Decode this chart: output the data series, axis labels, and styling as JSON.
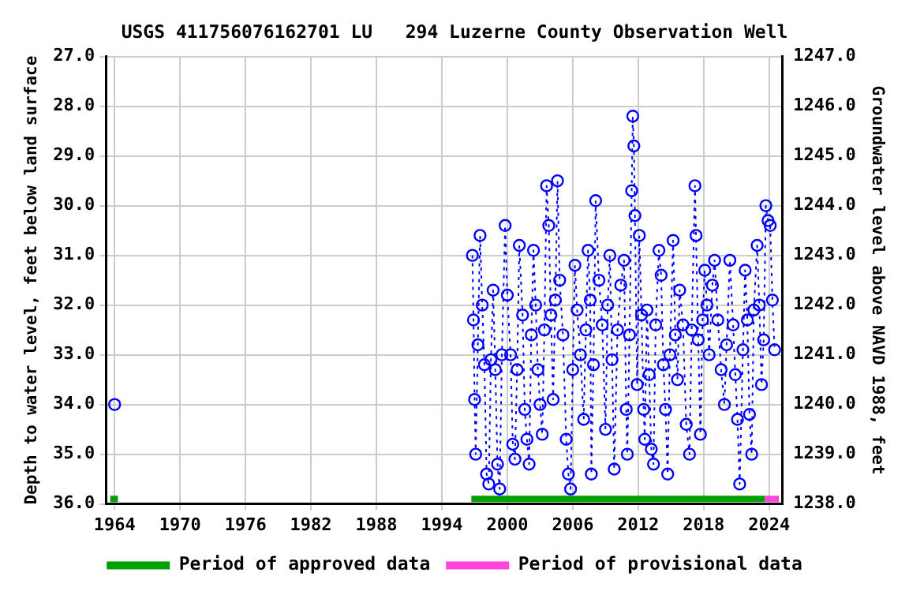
{
  "chart_data": {
    "type": "line",
    "title": "USGS 411756076162701 LU   294 Luzerne County Observation Well",
    "ylabel": "Depth to water level, feet below land surface",
    "y2label": "Groundwater level above NAVD 1988, feet",
    "x": [
      1964.0,
      1980,
      1996.8,
      1996.9,
      1997.0,
      1997.1,
      1997.3,
      1997.5,
      1997.7,
      1997.9,
      1998.1,
      1998.3,
      1998.5,
      1998.7,
      1998.9,
      1999.1,
      1999.3,
      1999.5,
      1999.8,
      2000.0,
      2000.3,
      2000.5,
      2000.7,
      2000.9,
      2001.1,
      2001.4,
      2001.6,
      2001.8,
      2002.0,
      2002.2,
      2002.4,
      2002.6,
      2002.8,
      2003.0,
      2003.2,
      2003.4,
      2003.6,
      2003.8,
      2004.0,
      2004.2,
      2004.4,
      2004.6,
      2004.8,
      2005.1,
      2005.4,
      2005.6,
      2005.8,
      2006.0,
      2006.2,
      2006.4,
      2006.7,
      2007.0,
      2007.2,
      2007.4,
      2007.6,
      2007.7,
      2007.9,
      2008.1,
      2008.4,
      2008.7,
      2009.0,
      2009.2,
      2009.4,
      2009.6,
      2009.8,
      2010.1,
      2010.4,
      2010.7,
      2010.9,
      2011.0,
      2011.2,
      2011.4,
      2011.5,
      2011.6,
      2011.7,
      2011.9,
      2012.1,
      2012.3,
      2012.5,
      2012.6,
      2012.8,
      2013.0,
      2013.2,
      2013.4,
      2013.6,
      2013.9,
      2014.1,
      2014.3,
      2014.5,
      2014.7,
      2014.9,
      2015.2,
      2015.4,
      2015.6,
      2015.8,
      2016.1,
      2016.4,
      2016.7,
      2016.9,
      2017.2,
      2017.3,
      2017.5,
      2017.7,
      2017.9,
      2018.1,
      2018.3,
      2018.5,
      2018.8,
      2019.0,
      2019.3,
      2019.6,
      2019.9,
      2020.1,
      2020.4,
      2020.7,
      2020.9,
      2021.1,
      2021.3,
      2021.6,
      2021.8,
      2022.0,
      2022.2,
      2022.4,
      2022.6,
      2022.9,
      2023.1,
      2023.3,
      2023.5,
      2023.7,
      2023.9,
      2024.1,
      2024.3,
      2024.5
    ],
    "series": [
      {
        "color": "#0000ff",
        "values": [
          34.0,
          null,
          31.0,
          32.3,
          33.9,
          35.0,
          32.8,
          30.6,
          32.0,
          33.2,
          35.4,
          35.6,
          33.1,
          31.7,
          33.3,
          35.2,
          35.7,
          33.0,
          30.4,
          31.8,
          33.0,
          34.8,
          35.1,
          33.3,
          30.8,
          32.2,
          34.1,
          34.7,
          35.2,
          32.6,
          30.9,
          32.0,
          33.3,
          34.0,
          34.6,
          32.5,
          29.6,
          30.4,
          32.2,
          33.9,
          31.9,
          29.5,
          31.5,
          32.6,
          34.7,
          35.4,
          35.7,
          33.3,
          31.2,
          32.1,
          33.0,
          34.3,
          32.5,
          30.9,
          31.9,
          35.4,
          33.2,
          29.9,
          31.5,
          32.4,
          34.5,
          32.0,
          31.0,
          33.1,
          35.3,
          32.5,
          31.6,
          31.1,
          34.1,
          35.0,
          32.6,
          29.7,
          28.2,
          28.8,
          30.2,
          33.6,
          30.6,
          32.2,
          34.1,
          34.7,
          32.1,
          33.4,
          34.9,
          35.2,
          32.4,
          30.9,
          31.4,
          33.2,
          34.1,
          35.4,
          33.0,
          30.7,
          32.6,
          33.5,
          31.7,
          32.4,
          34.4,
          35.0,
          32.5,
          29.6,
          30.6,
          32.7,
          34.6,
          32.3,
          31.3,
          32.0,
          33.0,
          31.6,
          31.1,
          32.3,
          33.3,
          34.0,
          32.8,
          31.1,
          32.4,
          33.4,
          34.3,
          35.6,
          32.9,
          31.3,
          32.3,
          34.2,
          35.0,
          32.1,
          30.8,
          32.0,
          33.6,
          32.7,
          30.0,
          30.3,
          30.4,
          31.9,
          32.9
        ]
      },
      {
        "name": "Period of approved data",
        "color": "#00a000",
        "marker": "none",
        "line_style": "solid",
        "x": [
          1963.6,
          1964.3,
          1980,
          1996.7,
          2023.6
        ],
        "values": [
          35.9,
          35.9,
          null,
          35.9,
          35.9
        ]
      },
      {
        "name": "Period of provisional data",
        "color": "#ff44dd",
        "marker": "none",
        "line_style": "solid",
        "x": [
          2023.6,
          2024.9
        ],
        "values": [
          35.9,
          35.9
        ]
      }
    ],
    "xlim": [
      1963.2,
      2025.2
    ],
    "xticks": [
      1964,
      1970,
      1976,
      1982,
      1988,
      1994,
      2000,
      2006,
      2012,
      2018,
      2024
    ],
    "ylim": [
      36,
      27
    ],
    "yticks": [
      {
        "value": 27,
        "label": "27.0"
      },
      {
        "value": 28,
        "label": "28.0"
      },
      {
        "value": 29,
        "label": "29.0"
      },
      {
        "value": 30,
        "label": "30.0"
      },
      {
        "value": 31,
        "label": "31.0"
      },
      {
        "value": 32,
        "label": "32.0"
      },
      {
        "value": 33,
        "label": "33.0"
      },
      {
        "value": 34,
        "label": "34.0"
      },
      {
        "value": 35,
        "label": "35.0"
      },
      {
        "value": 36,
        "label": "36.0"
      }
    ],
    "y2lim": [
      1238,
      1247
    ],
    "y2ticks": [
      {
        "value": 1238,
        "label": "1238.0"
      },
      {
        "value": 1239,
        "label": "1239.0"
      },
      {
        "value": 1240,
        "label": "1240.0"
      },
      {
        "value": 1241,
        "label": "1241.0"
      },
      {
        "value": 1242,
        "label": "1242.0"
      },
      {
        "value": 1243,
        "label": "1243.0"
      },
      {
        "value": 1244,
        "label": "1244.0"
      },
      {
        "value": 1245,
        "label": "1245.0"
      },
      {
        "value": 1246,
        "label": "1246.0"
      },
      {
        "value": 1247,
        "label": "1247.0"
      }
    ],
    "grid": true,
    "legend": "bottom",
    "marker": "circle",
    "line_style": "dotted"
  }
}
